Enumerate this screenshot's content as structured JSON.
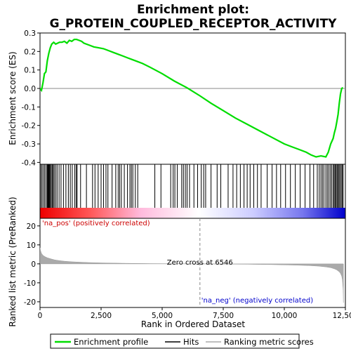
{
  "title_line1": "Enrichment plot:",
  "title_line2": "G_PROTEIN_COUPLED_RECEPTOR_ACTIVITY",
  "colors": {
    "profile": "#00dd00",
    "hits": "#000000",
    "metric": "#aaaaaa",
    "pos_label": "#cc0000",
    "neg_label": "#0000cc",
    "zero_line": "#888888"
  },
  "chart_data": [
    {
      "type": "line",
      "name": "enrichment-score-panel",
      "ylabel": "Enrichment score (ES)",
      "xlim": [
        0,
        12500
      ],
      "ylim": [
        -0.41,
        0.3
      ],
      "yticks": [
        -0.4,
        -0.3,
        -0.2,
        -0.1,
        0.0,
        0.1,
        0.2,
        0.3
      ],
      "ytick_labels": [
        "-0.4",
        "-0.3",
        "-0.2",
        "-0.1",
        "0.0",
        "0.1",
        "0.2",
        "0.3"
      ],
      "series": [
        {
          "name": "Enrichment profile",
          "x": [
            0,
            60,
            120,
            180,
            240,
            300,
            360,
            420,
            480,
            560,
            640,
            720,
            800,
            900,
            1000,
            1100,
            1200,
            1300,
            1400,
            1500,
            1600,
            1700,
            1800,
            2000,
            2200,
            2400,
            2600,
            2800,
            3000,
            3200,
            3400,
            3600,
            3800,
            4000,
            4200,
            4500,
            5000,
            5500,
            6000,
            6546,
            7000,
            7500,
            8000,
            8500,
            9000,
            9500,
            10000,
            10300,
            10600,
            10900,
            11100,
            11300,
            11500,
            11700,
            11800,
            11900,
            12000,
            12050,
            12100,
            12150,
            12200,
            12250,
            12300,
            12350,
            12400
          ],
          "values": [
            0.0,
            -0.01,
            0.03,
            0.08,
            0.09,
            0.15,
            0.19,
            0.22,
            0.24,
            0.25,
            0.24,
            0.245,
            0.25,
            0.25,
            0.255,
            0.245,
            0.26,
            0.255,
            0.265,
            0.265,
            0.26,
            0.255,
            0.245,
            0.235,
            0.225,
            0.22,
            0.215,
            0.205,
            0.195,
            0.185,
            0.175,
            0.165,
            0.155,
            0.145,
            0.135,
            0.115,
            0.08,
            0.04,
            0.005,
            -0.04,
            -0.08,
            -0.12,
            -0.16,
            -0.195,
            -0.23,
            -0.265,
            -0.3,
            -0.315,
            -0.33,
            -0.345,
            -0.36,
            -0.37,
            -0.365,
            -0.37,
            -0.345,
            -0.3,
            -0.27,
            -0.24,
            -0.215,
            -0.18,
            -0.14,
            -0.08,
            -0.03,
            0.0,
            0.005
          ]
        }
      ]
    },
    {
      "type": "scatter",
      "name": "hits-panel",
      "series": [
        {
          "name": "Hits",
          "x": [
            40,
            90,
            150,
            200,
            260,
            300,
            330,
            360,
            390,
            420,
            460,
            500,
            540,
            580,
            640,
            700,
            780,
            860,
            960,
            1060,
            1160,
            1240,
            1320,
            1420,
            1480,
            1520,
            1660,
            1900,
            2150,
            2250,
            2380,
            2500,
            2600,
            2700,
            2780,
            2950,
            3100,
            3200,
            3260,
            3330,
            3450,
            3580,
            3680,
            3740,
            3800,
            3900,
            4000,
            4700,
            4950,
            5350,
            5450,
            5520,
            5620,
            5800,
            5870,
            5950,
            6020,
            6120,
            6300,
            6450,
            6600,
            6700,
            6780,
            7000,
            7250,
            7400,
            7700,
            7900,
            8050,
            8200,
            8350,
            8480,
            8600,
            8750,
            8900,
            9050,
            9300,
            9500,
            9680,
            9850,
            10050,
            10250,
            10450,
            10650,
            10850,
            11050,
            11200,
            11350,
            11430,
            11500,
            11560,
            11620,
            11700,
            11760,
            11820,
            11880,
            11940,
            12000,
            12040,
            12080,
            12120,
            12160,
            12200,
            12240,
            12280,
            12330,
            12370,
            12410
          ]
        }
      ]
    },
    {
      "type": "area",
      "name": "ranked-metric-panel",
      "xlabel": "Rank in Ordered Dataset",
      "ylabel": "Ranked list metric (PreRanked)",
      "xlim": [
        0,
        12500
      ],
      "ylim": [
        -23,
        24
      ],
      "xticks": [
        0,
        2500,
        5000,
        7500,
        10000,
        12500
      ],
      "xtick_labels": [
        "0",
        "2,500",
        "5,000",
        "7,500",
        "10,000",
        "12,500"
      ],
      "yticks": [
        -20,
        -10,
        0,
        10,
        20
      ],
      "ytick_labels": [
        "-20",
        "-10",
        "0",
        "10",
        "20"
      ],
      "zero_cross": 6546,
      "zero_cross_label": "Zero cross at 6546",
      "pos_label": "'na_pos' (positively correlated)",
      "neg_label": "'na_neg' (negatively correlated)",
      "series": [
        {
          "name": "Ranking metric scores",
          "x": [
            0,
            20,
            60,
            120,
            200,
            300,
            450,
            600,
            800,
            1000,
            1300,
            1600,
            2000,
            2500,
            3000,
            3500,
            4000,
            4500,
            5000,
            5500,
            6000,
            6546,
            7000,
            7500,
            8000,
            8500,
            9000,
            9500,
            10000,
            10500,
            11000,
            11400,
            11700,
            11900,
            12050,
            12150,
            12250,
            12300,
            12350,
            12380,
            12410,
            12420
          ],
          "values": [
            8.5,
            7.0,
            5.5,
            4.5,
            3.8,
            3.2,
            2.6,
            2.1,
            1.7,
            1.4,
            1.1,
            0.9,
            0.7,
            0.5,
            0.38,
            0.28,
            0.2,
            0.14,
            0.09,
            0.05,
            0.02,
            0.0,
            -0.05,
            -0.1,
            -0.16,
            -0.22,
            -0.3,
            -0.4,
            -0.52,
            -0.68,
            -0.9,
            -1.2,
            -1.6,
            -2.0,
            -2.6,
            -3.2,
            -4.2,
            -5.0,
            -6.5,
            -8.5,
            -14.0,
            -20.5
          ]
        }
      ]
    }
  ],
  "legend": {
    "profile_label": "Enrichment profile",
    "hits_label": "Hits",
    "metric_label": "Ranking metric scores"
  }
}
